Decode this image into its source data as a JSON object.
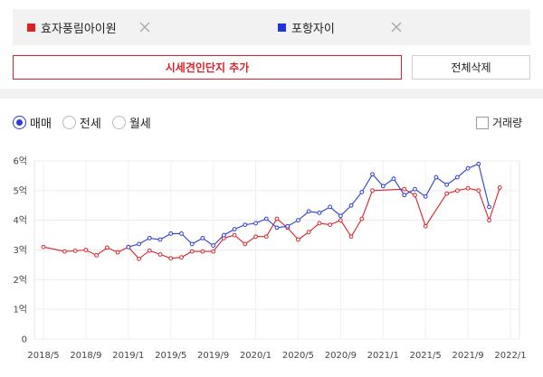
{
  "compare": {
    "items": [
      {
        "name": "효자풍림아이원",
        "color": "#e02020"
      },
      {
        "name": "포항자이",
        "color": "#2233dd"
      }
    ]
  },
  "actions": {
    "add_label": "시세견인단지 추가",
    "clear_label": "전체삭제"
  },
  "trade_type": {
    "options": [
      "매매",
      "전세",
      "월세"
    ],
    "selected": "매매"
  },
  "transaction_volume": {
    "label": "거래량",
    "checked": false
  },
  "chart_data": {
    "type": "line",
    "y_ticks": [
      "0",
      "1억",
      "2억",
      "3억",
      "4억",
      "5억",
      "6억"
    ],
    "ylim": [
      0,
      6
    ],
    "x_ticks": [
      "2018/5",
      "2018/9",
      "2019/1",
      "2019/5",
      "2019/9",
      "2020/1",
      "2020/5",
      "2020/9",
      "2021/1",
      "2021/5",
      "2021/9",
      "2022/1"
    ],
    "x_start": "2018/5",
    "grid": true,
    "series": [
      {
        "name": "효자풍림아이원",
        "color": "#d8232a",
        "points": [
          [
            0,
            3.1
          ],
          [
            2,
            2.95
          ],
          [
            3,
            2.97
          ],
          [
            4,
            3.0
          ],
          [
            5,
            2.82
          ],
          [
            6,
            3.08
          ],
          [
            7,
            2.92
          ],
          [
            8,
            3.1
          ],
          [
            9,
            2.7
          ],
          [
            10,
            2.98
          ],
          [
            11,
            2.85
          ],
          [
            12,
            2.72
          ],
          [
            13,
            2.75
          ],
          [
            14,
            2.95
          ],
          [
            15,
            2.95
          ],
          [
            16,
            2.95
          ],
          [
            17,
            3.4
          ],
          [
            18,
            3.5
          ],
          [
            19,
            3.2
          ],
          [
            20,
            3.45
          ],
          [
            21,
            3.45
          ],
          [
            22,
            4.05
          ],
          [
            23,
            3.75
          ],
          [
            24,
            3.35
          ],
          [
            25,
            3.6
          ],
          [
            26,
            3.9
          ],
          [
            27,
            3.85
          ],
          [
            28,
            4.0
          ],
          [
            29,
            3.45
          ],
          [
            30,
            4.05
          ],
          [
            31,
            5.0
          ],
          [
            34,
            5.05
          ],
          [
            35,
            4.85
          ],
          [
            36,
            3.8
          ],
          [
            38,
            4.9
          ],
          [
            39,
            5.0
          ],
          [
            40,
            5.08
          ],
          [
            41,
            5.0
          ],
          [
            42,
            4.0
          ],
          [
            43,
            5.1
          ]
        ]
      },
      {
        "name": "포항자이",
        "color": "#2a3dd6",
        "points": [
          [
            8,
            3.1
          ],
          [
            9,
            3.2
          ],
          [
            10,
            3.4
          ],
          [
            11,
            3.35
          ],
          [
            12,
            3.55
          ],
          [
            13,
            3.55
          ],
          [
            14,
            3.2
          ],
          [
            15,
            3.4
          ],
          [
            16,
            3.15
          ],
          [
            17,
            3.5
          ],
          [
            18,
            3.7
          ],
          [
            19,
            3.85
          ],
          [
            20,
            3.9
          ],
          [
            21,
            4.05
          ],
          [
            22,
            3.75
          ],
          [
            23,
            3.8
          ],
          [
            24,
            4.0
          ],
          [
            25,
            4.3
          ],
          [
            26,
            4.25
          ],
          [
            27,
            4.45
          ],
          [
            28,
            4.15
          ],
          [
            29,
            4.5
          ],
          [
            30,
            4.95
          ],
          [
            31,
            5.55
          ],
          [
            32,
            5.15
          ],
          [
            33,
            5.4
          ],
          [
            34,
            4.85
          ],
          [
            35,
            5.05
          ],
          [
            36,
            4.8
          ],
          [
            37,
            5.45
          ],
          [
            38,
            5.2
          ],
          [
            39,
            5.45
          ],
          [
            40,
            5.75
          ],
          [
            41,
            5.9
          ],
          [
            42,
            4.45
          ]
        ]
      }
    ]
  }
}
